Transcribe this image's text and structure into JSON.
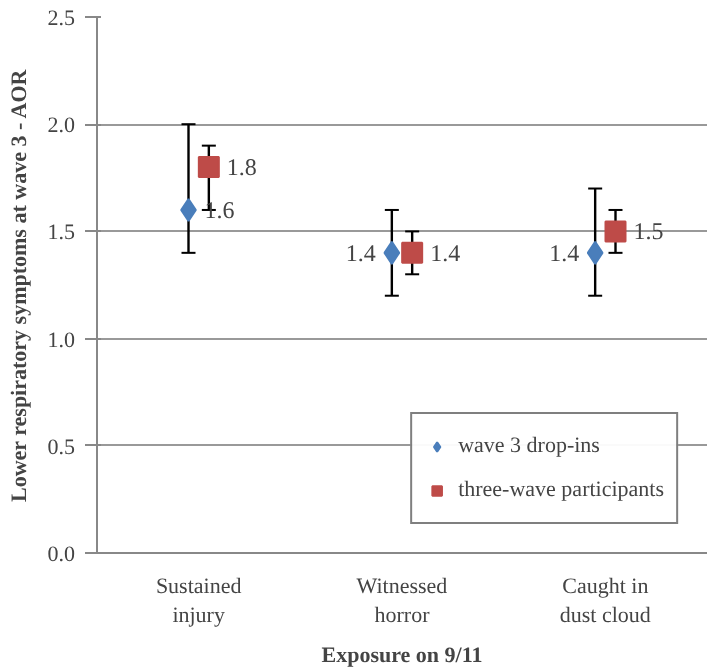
{
  "chart_data": {
    "type": "scatter",
    "xlabel": "Exposure on 9/11",
    "ylabel": "Lower respiratory symptoms at wave 3 - AOR",
    "categories": [
      "Sustained injury",
      "Witnessed horror",
      "Caught in dust cloud"
    ],
    "series": [
      {
        "name": "wave 3 drop-ins",
        "color": "#4a7ebb",
        "marker": "diamond",
        "values": [
          1.6,
          1.4,
          1.4
        ],
        "errors": [
          [
            1.4,
            2.0
          ],
          [
            1.2,
            1.6
          ],
          [
            1.2,
            1.7
          ]
        ]
      },
      {
        "name": "three-wave participants",
        "color": "#be4b48",
        "marker": "square",
        "values": [
          1.8,
          1.4,
          1.5
        ],
        "errors": [
          [
            1.6,
            1.9
          ],
          [
            1.3,
            1.5
          ],
          [
            1.4,
            1.6
          ]
        ]
      }
    ],
    "ylim": [
      0,
      2.5
    ],
    "yticks": [
      {
        "value": 0,
        "label": "0.0"
      },
      0.5,
      {
        "value": 1,
        "label": "1.0"
      },
      1.5,
      {
        "value": 2,
        "label": "2.0"
      },
      2.5
    ],
    "grid": "y",
    "legend": "bottom right",
    "data_labels": true
  }
}
